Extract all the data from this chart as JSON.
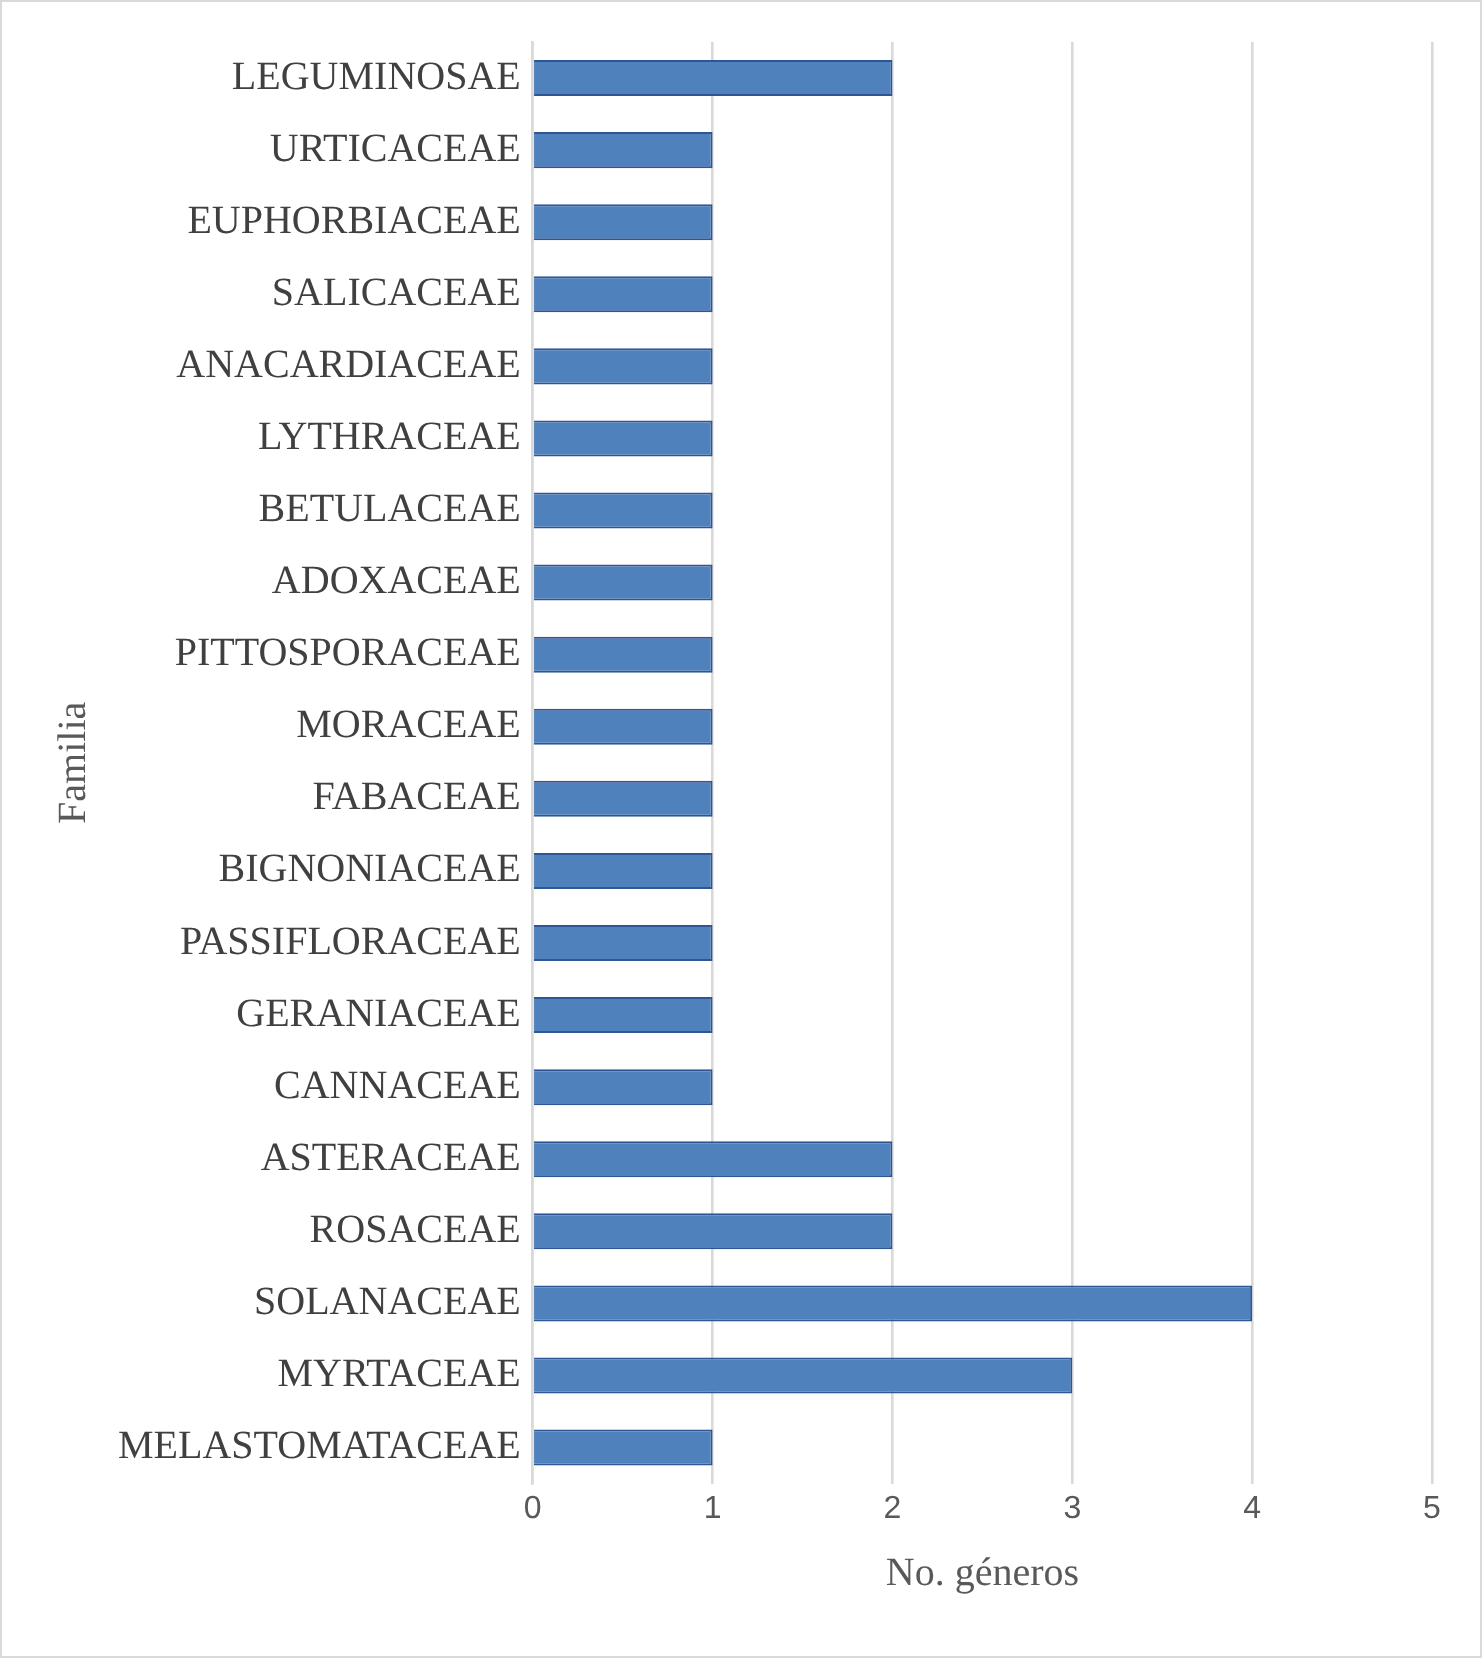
{
  "chart_data": {
    "type": "bar",
    "orientation": "horizontal",
    "xlabel": "No. géneros",
    "ylabel": "Familia",
    "categories": [
      "LEGUMINOSAE",
      "URTICACEAE",
      "EUPHORBIACEAE",
      "SALICACEAE",
      "ANACARDIACEAE",
      "LYTHRACEAE",
      "BETULACEAE",
      "ADOXACEAE",
      "PITTOSPORACEAE",
      "MORACEAE",
      "FABACEAE",
      "BIGNONIACEAE",
      "PASSIFLORACEAE",
      "GERANIACEAE",
      "CANNACEAE",
      "ASTERACEAE",
      "ROSACEAE",
      "SOLANACEAE",
      "MYRTACEAE",
      "MELASTOMATACEAE"
    ],
    "values": [
      2,
      1,
      1,
      1,
      1,
      1,
      1,
      1,
      1,
      1,
      1,
      1,
      1,
      1,
      1,
      2,
      2,
      4,
      3,
      1
    ],
    "color": "#4f81bd",
    "xlim": [
      0,
      5
    ],
    "xticks": [
      0,
      1,
      2,
      3,
      4,
      5
    ],
    "grid": "x"
  }
}
